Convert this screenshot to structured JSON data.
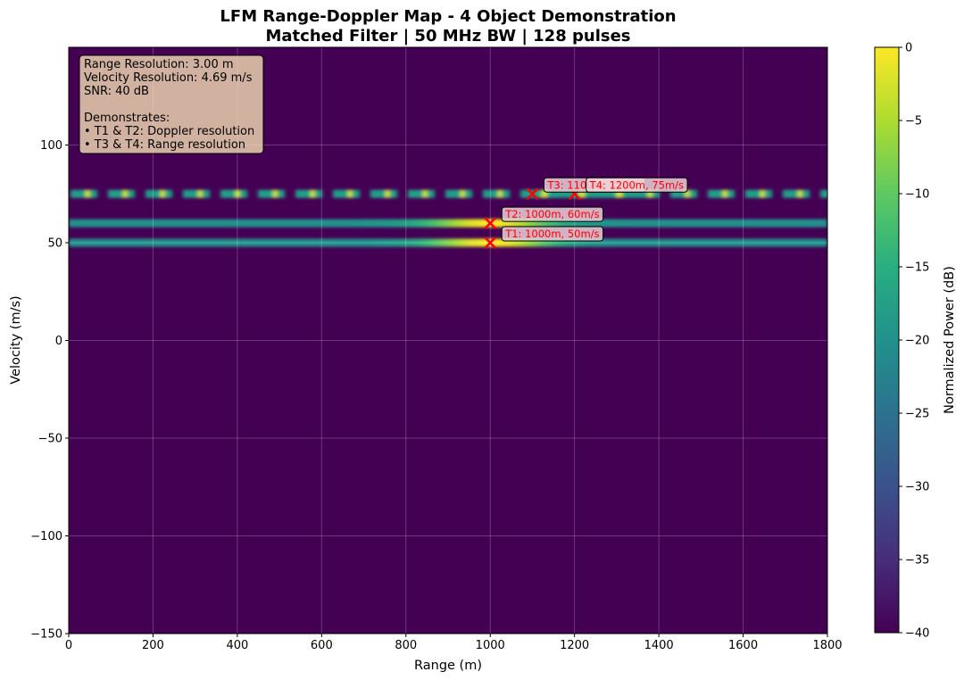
{
  "chart_data": {
    "type": "heatmap",
    "title": "LFM Range-Doppler Map - 4 Object Demonstration",
    "subtitle": "Matched Filter | 50 MHz BW | 128 pulses",
    "xlabel": "Range (m)",
    "ylabel": "Velocity (m/s)",
    "xlim": [
      0,
      1800
    ],
    "ylim": [
      -150,
      150
    ],
    "x_ticks": [
      0,
      200,
      400,
      600,
      800,
      1000,
      1200,
      1400,
      1600,
      1800
    ],
    "y_ticks": [
      -150,
      -100,
      -50,
      0,
      50,
      100
    ],
    "y_tick_labels": [
      "−150",
      "−100",
      "−50",
      "0",
      "50",
      "100"
    ],
    "grid": true,
    "colormap": "viridis",
    "colorbar": {
      "label": "Normalized Power (dB)",
      "range": [
        -40,
        0
      ],
      "ticks": [
        0,
        -5,
        -10,
        -15,
        -20,
        -25,
        -30,
        -35,
        -40
      ],
      "tick_labels": [
        "0",
        "−5",
        "−10",
        "−15",
        "−20",
        "−25",
        "−30",
        "−35",
        "−40"
      ]
    },
    "background_db": -40,
    "bands": [
      {
        "velocity": 50,
        "peak_range": 1000,
        "style": "continuous"
      },
      {
        "velocity": 60,
        "peak_range": 1000,
        "style": "continuous"
      },
      {
        "velocity": 75,
        "peak_range": 1150,
        "style": "dashed"
      }
    ],
    "targets": [
      {
        "range": 1000,
        "velocity": 50,
        "label": "T1: 1000m, 50m/s"
      },
      {
        "range": 1000,
        "velocity": 60,
        "label": "T2: 1000m, 60m/s"
      },
      {
        "range": 1100,
        "velocity": 75,
        "label": "T3: 1100m, 75m/s"
      },
      {
        "range": 1200,
        "velocity": 75,
        "label": "T4: 1200m, 75m/s"
      }
    ],
    "marker": {
      "shape": "x",
      "color": "#ff0000"
    },
    "info_box": {
      "lines": [
        "Range Resolution: 3.00 m",
        "Velocity Resolution: 4.69 m/s",
        "SNR: 40 dB",
        "",
        "Demonstrates:",
        "• T1 & T2: Doppler resolution",
        "• T3 & T4: Range resolution"
      ],
      "position": "top-left"
    }
  }
}
